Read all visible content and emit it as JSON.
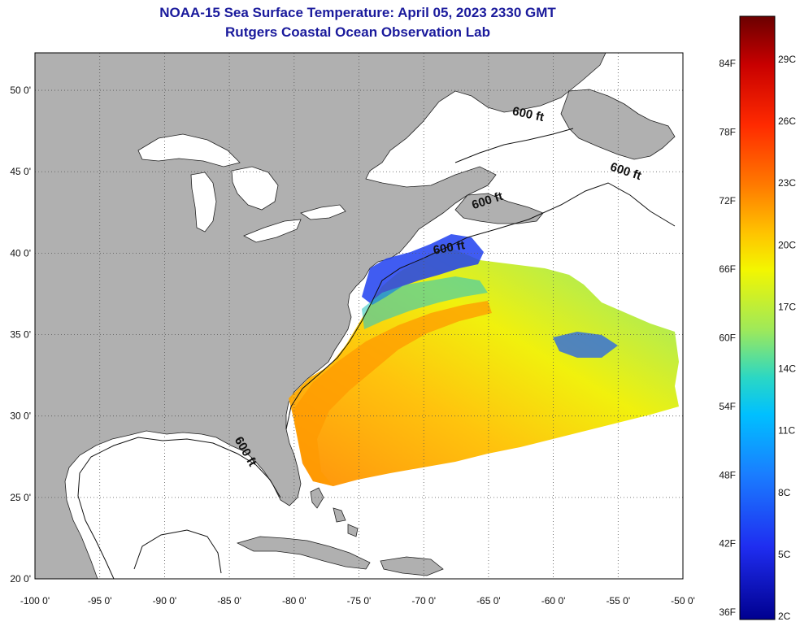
{
  "title": {
    "line1": "NOAA-15 Sea Surface Temperature:  April 05, 2023 2330 GMT",
    "line2": "Rutgers Coastal Ocean Observation Lab"
  },
  "map": {
    "lon_range": [
      -100,
      -50
    ],
    "lat_range": [
      20,
      52.3
    ],
    "lon_ticks": [
      "-100 0'",
      "-95 0'",
      "-90 0'",
      "-85 0'",
      "-80 0'",
      "-75 0'",
      "-70 0'",
      "-65 0'",
      "-60 0'",
      "-55 0'",
      "-50 0'"
    ],
    "lat_ticks": [
      "50 0'",
      "45 0'",
      "40 0'",
      "35 0'",
      "30 0'",
      "25 0'",
      "20 0'"
    ],
    "land_color": "#b0b0b0",
    "ocean_color": "#ffffff",
    "contour_labels": [
      {
        "text": "600 ft",
        "lon": -62.0,
        "lat": 48.3
      },
      {
        "text": "600 ft",
        "lon": -54.5,
        "lat": 44.8
      },
      {
        "text": "600 ft",
        "lon": -65.0,
        "lat": 43.0
      },
      {
        "text": "600 ft",
        "lon": -68.0,
        "lat": 40.1
      },
      {
        "text": "600 ft",
        "lon": -84.0,
        "lat": 27.7
      }
    ]
  },
  "colorbar": {
    "fahrenheit_labels": [
      "84F",
      "78F",
      "72F",
      "66F",
      "60F",
      "54F",
      "48F",
      "42F",
      "36F"
    ],
    "celsius_labels": [
      "29C",
      "26C",
      "23C",
      "20C",
      "17C",
      "14C",
      "11C",
      "8C",
      "5C",
      "2C"
    ],
    "colors": [
      "#6b0000",
      "#c80000",
      "#ff2a00",
      "#ff7a00",
      "#ffc400",
      "#f3f600",
      "#9ee95a",
      "#2ad7c5",
      "#00c0ff",
      "#1a7dff",
      "#1f2df0",
      "#00008f"
    ]
  }
}
